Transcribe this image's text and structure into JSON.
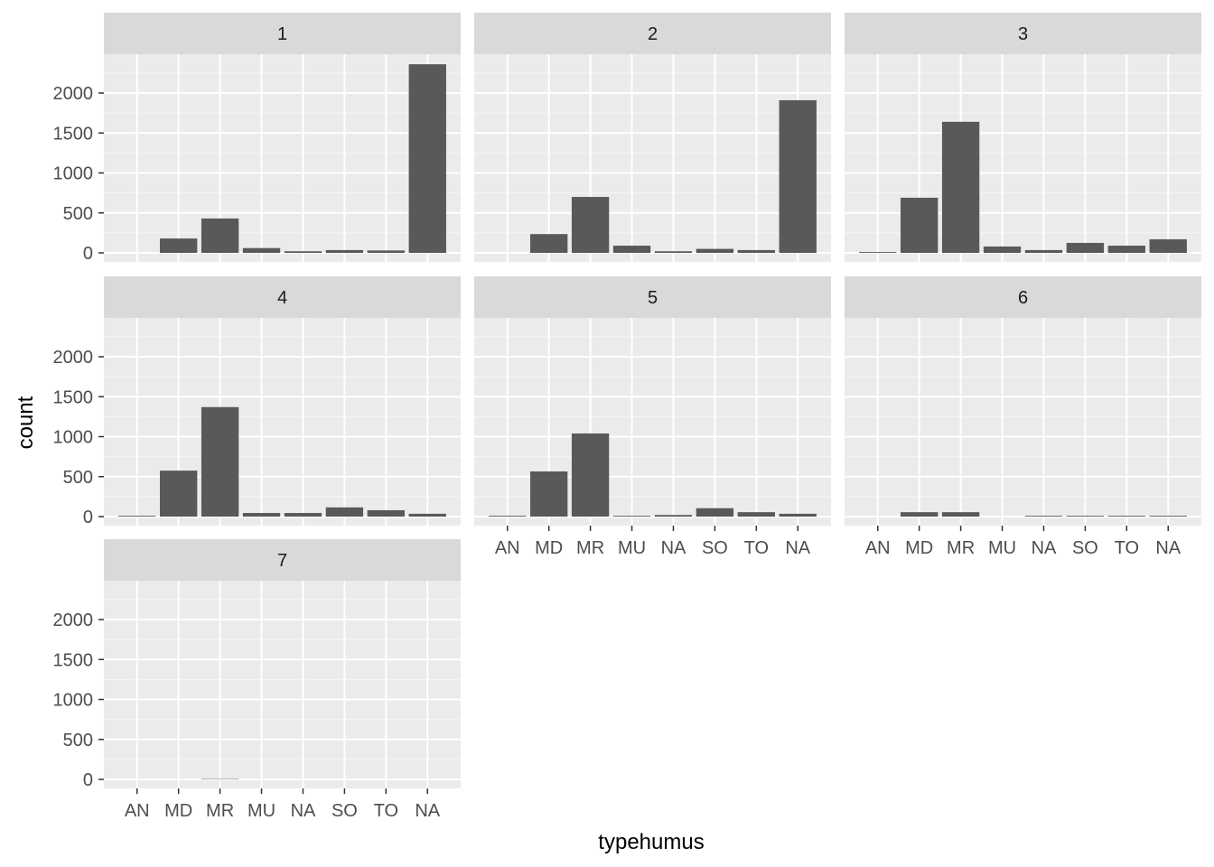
{
  "chart_data": {
    "type": "bar",
    "facet_by": "",
    "xlabel": "typehumus",
    "ylabel": "count",
    "categories": [
      "AN",
      "MD",
      "MR",
      "MU",
      "NA",
      "SO",
      "TO",
      "NA"
    ],
    "ylim": [
      0,
      2500
    ],
    "yticks": [
      0,
      500,
      1000,
      1500,
      2000
    ],
    "ncol": 3,
    "grid": true,
    "legend": "none",
    "colors": {
      "bar": "#595959",
      "panel_bg": "#ebebeb",
      "strip_bg": "#d9d9d9",
      "grid": "#ffffff",
      "text": "#000000",
      "tick_text": "#4d4d4d"
    },
    "facets": [
      {
        "label": "1",
        "values": [
          0,
          180,
          430,
          60,
          20,
          35,
          30,
          2360
        ]
      },
      {
        "label": "2",
        "values": [
          0,
          235,
          700,
          90,
          20,
          50,
          35,
          1910
        ]
      },
      {
        "label": "3",
        "values": [
          10,
          690,
          1640,
          80,
          35,
          125,
          90,
          170
        ]
      },
      {
        "label": "4",
        "values": [
          10,
          575,
          1370,
          45,
          45,
          115,
          80,
          35
        ]
      },
      {
        "label": "5",
        "values": [
          10,
          565,
          1040,
          10,
          20,
          105,
          55,
          35
        ]
      },
      {
        "label": "6",
        "values": [
          0,
          55,
          55,
          0,
          10,
          10,
          10,
          10
        ]
      },
      {
        "label": "7",
        "values": [
          0,
          0,
          5,
          0,
          0,
          0,
          0,
          0
        ]
      }
    ]
  }
}
